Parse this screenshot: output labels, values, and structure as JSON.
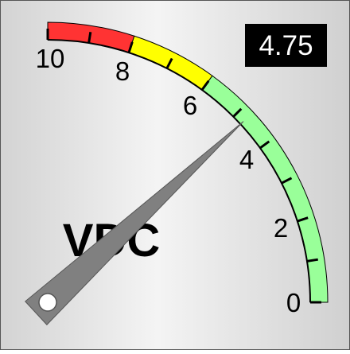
{
  "gauge": {
    "unit": "VDC",
    "readout": "4.75",
    "value": 4.75,
    "min": 0,
    "max": 10,
    "tick_labels": [
      "0",
      "2",
      "4",
      "6",
      "8",
      "10"
    ],
    "zones": [
      {
        "name": "green",
        "from": 0,
        "to": 6,
        "color": "#99ff99"
      },
      {
        "name": "yellow",
        "from": 6,
        "to": 8,
        "color": "#ffff00"
      },
      {
        "name": "red",
        "from": 8,
        "to": 10,
        "color": "#ff3333"
      }
    ],
    "needle_color": "#808080",
    "readout_background": "#000000"
  }
}
